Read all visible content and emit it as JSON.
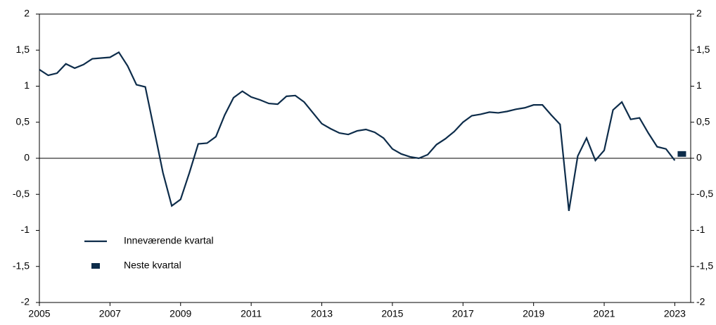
{
  "chart_data": {
    "type": "line",
    "series": [
      {
        "name": "Inneværende kvartal",
        "color": "#0d2c4a",
        "type": "line",
        "x": [
          2005.0,
          2005.25,
          2005.5,
          2005.75,
          2006.0,
          2006.25,
          2006.5,
          2006.75,
          2007.0,
          2007.25,
          2007.5,
          2007.75,
          2008.0,
          2008.25,
          2008.5,
          2008.75,
          2009.0,
          2009.25,
          2009.5,
          2009.75,
          2010.0,
          2010.25,
          2010.5,
          2010.75,
          2011.0,
          2011.25,
          2011.5,
          2011.75,
          2012.0,
          2012.25,
          2012.5,
          2012.75,
          2013.0,
          2013.25,
          2013.5,
          2013.75,
          2014.0,
          2014.25,
          2014.5,
          2014.75,
          2015.0,
          2015.25,
          2015.5,
          2015.75,
          2016.0,
          2016.25,
          2016.5,
          2016.75,
          2017.0,
          2017.25,
          2017.5,
          2017.75,
          2018.0,
          2018.25,
          2018.5,
          2018.75,
          2019.0,
          2019.25,
          2019.5,
          2019.75,
          2020.0,
          2020.25,
          2020.5,
          2020.75,
          2021.0,
          2021.25,
          2021.5,
          2021.75,
          2022.0,
          2022.25,
          2022.5,
          2022.75,
          2023.0
        ],
        "values": [
          1.23,
          1.15,
          1.18,
          1.31,
          1.25,
          1.3,
          1.38,
          1.39,
          1.4,
          1.47,
          1.28,
          1.02,
          0.99,
          0.4,
          -0.2,
          -0.66,
          -0.57,
          -0.2,
          0.2,
          0.21,
          0.3,
          0.6,
          0.84,
          0.93,
          0.85,
          0.81,
          0.76,
          0.75,
          0.86,
          0.87,
          0.78,
          0.63,
          0.48,
          0.41,
          0.35,
          0.33,
          0.38,
          0.4,
          0.36,
          0.28,
          0.13,
          0.06,
          0.02,
          0.0,
          0.05,
          0.19,
          0.27,
          0.37,
          0.5,
          0.59,
          0.61,
          0.64,
          0.63,
          0.65,
          0.68,
          0.7,
          0.74,
          0.74,
          0.6,
          0.47,
          -0.73,
          0.03,
          0.28,
          -0.03,
          0.11,
          0.67,
          0.78,
          0.54,
          0.56,
          0.35,
          0.16,
          0.13,
          -0.03
        ]
      },
      {
        "name": "Neste kvartal",
        "color": "#0d2c4a",
        "type": "scatter",
        "x": [
          2023.2
        ],
        "values": [
          0.06
        ]
      }
    ],
    "xlim": [
      2005,
      2023.45
    ],
    "xticks": [
      2005,
      2007,
      2009,
      2011,
      2013,
      2015,
      2017,
      2019,
      2021,
      2023
    ],
    "ylim": [
      -2,
      2
    ],
    "yticks": [
      -2,
      {
        "value": -1.5,
        "label": "-1,5"
      },
      -1,
      {
        "value": -0.5,
        "label": "-0,5"
      },
      0,
      {
        "value": 0.5,
        "label": "0,5"
      },
      1,
      {
        "value": 1.5,
        "label": "1,5"
      },
      2
    ],
    "y2lim": [
      -2,
      2
    ],
    "y2ticks": [
      -2,
      {
        "value": -1.5,
        "label": "-1,5"
      },
      -1,
      {
        "value": -0.5,
        "label": "-0,5"
      },
      0,
      {
        "value": 0.5,
        "label": "0,5"
      },
      1,
      {
        "value": 1.5,
        "label": "1,5"
      },
      2
    ],
    "legend": "lower left"
  }
}
